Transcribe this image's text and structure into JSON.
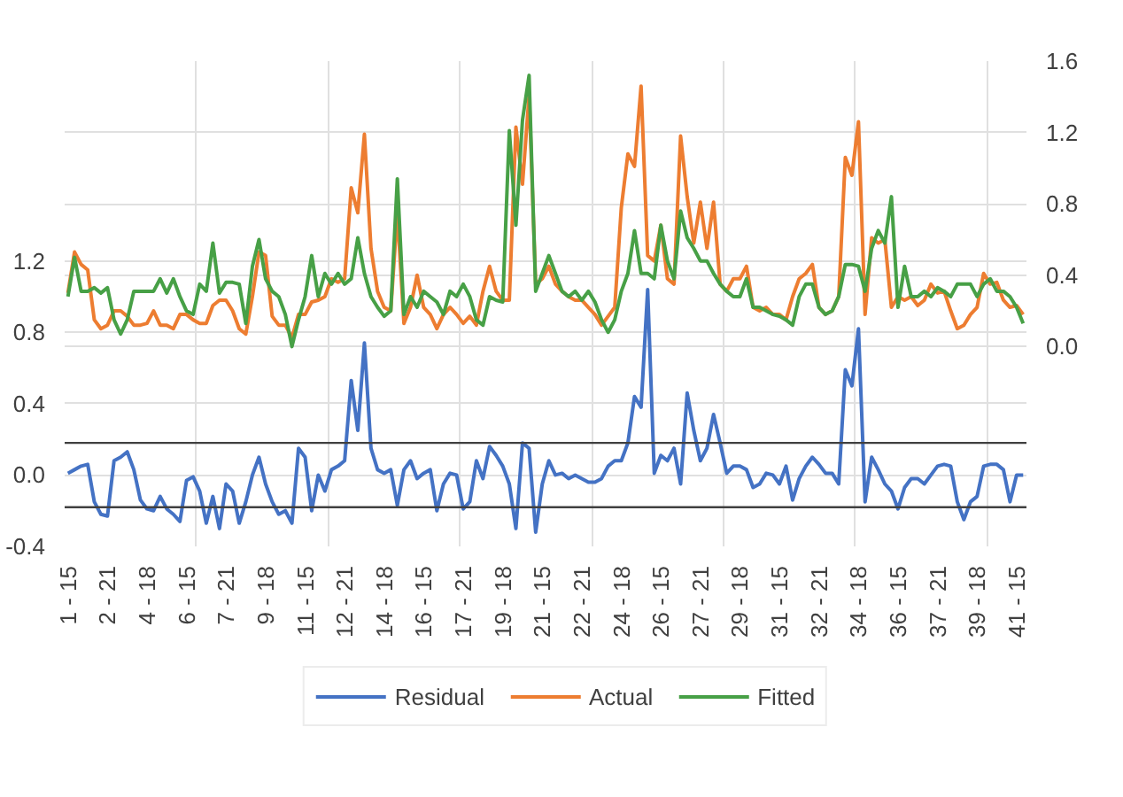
{
  "chart_data": {
    "type": "line",
    "categories": [
      "1 - 15",
      null,
      null,
      null,
      null,
      null,
      "2 - 21",
      null,
      null,
      null,
      null,
      null,
      "4 - 18",
      null,
      null,
      null,
      null,
      null,
      "6 - 15",
      null,
      null,
      null,
      null,
      null,
      "7 - 21",
      null,
      null,
      null,
      null,
      null,
      "9 - 18",
      null,
      null,
      null,
      null,
      null,
      "11 - 15",
      null,
      null,
      null,
      null,
      null,
      "12 - 21",
      null,
      null,
      null,
      null,
      null,
      "14 - 18",
      null,
      null,
      null,
      null,
      null,
      "16 - 15",
      null,
      null,
      null,
      null,
      null,
      "17 - 21",
      null,
      null,
      null,
      null,
      null,
      "19 - 18",
      null,
      null,
      null,
      null,
      null,
      "21 - 15",
      null,
      null,
      null,
      null,
      null,
      "22 - 21",
      null,
      null,
      null,
      null,
      null,
      "24 - 18",
      null,
      null,
      null,
      null,
      null,
      "26 - 15",
      null,
      null,
      null,
      null,
      null,
      "27 - 21",
      null,
      null,
      null,
      null,
      null,
      "29 - 18",
      null,
      null,
      null,
      null,
      null,
      "31 - 15",
      null,
      null,
      null,
      null,
      null,
      "32 - 21",
      null,
      null,
      null,
      null,
      null,
      "34 - 18",
      null,
      null,
      null,
      null,
      null,
      "36 - 15",
      null,
      null,
      null,
      null,
      null,
      "37 - 21",
      null,
      null,
      null,
      null,
      null,
      "39 - 18",
      null,
      null,
      null,
      null,
      null,
      "41 - 15",
      null
    ],
    "series": [
      {
        "name": "Residual",
        "color": "#4472c4",
        "values": [
          0.01,
          0.03,
          0.05,
          0.06,
          -0.15,
          -0.22,
          -0.23,
          0.08,
          0.1,
          0.13,
          0.03,
          -0.14,
          -0.19,
          -0.2,
          -0.12,
          -0.19,
          -0.22,
          -0.26,
          -0.03,
          -0.01,
          -0.09,
          -0.27,
          -0.12,
          -0.3,
          -0.05,
          -0.09,
          -0.27,
          -0.15,
          0.0,
          0.1,
          -0.05,
          -0.15,
          -0.22,
          -0.2,
          -0.27,
          0.15,
          0.1,
          -0.2,
          0.0,
          -0.09,
          0.03,
          0.05,
          0.08,
          0.53,
          0.25,
          0.74,
          0.15,
          0.03,
          0.01,
          0.03,
          -0.17,
          0.03,
          0.08,
          -0.02,
          0.01,
          0.03,
          -0.2,
          -0.05,
          0.01,
          0.0,
          -0.19,
          -0.15,
          0.08,
          -0.02,
          0.16,
          0.11,
          0.05,
          -0.05,
          -0.3,
          0.18,
          0.15,
          -0.32,
          -0.05,
          0.08,
          0.0,
          0.01,
          -0.02,
          0.0,
          -0.02,
          -0.04,
          -0.04,
          -0.02,
          0.05,
          0.08,
          0.08,
          0.18,
          0.44,
          0.38,
          1.04,
          0.01,
          0.11,
          0.08,
          0.15,
          -0.05,
          0.46,
          0.25,
          0.08,
          0.15,
          0.34,
          0.18,
          0.01,
          0.05,
          0.05,
          0.03,
          -0.07,
          -0.05,
          0.01,
          0.0,
          -0.05,
          0.05,
          -0.14,
          -0.02,
          0.05,
          0.1,
          0.06,
          0.01,
          0.01,
          -0.05,
          0.59,
          0.5,
          0.82,
          -0.15,
          0.1,
          0.03,
          -0.05,
          -0.09,
          -0.19,
          -0.07,
          -0.02,
          -0.02,
          -0.05,
          0.0,
          0.05,
          0.06,
          0.05,
          -0.15,
          -0.25,
          -0.15,
          -0.12,
          0.05,
          0.06,
          0.06,
          0.03,
          -0.15,
          0.0,
          0.0
        ]
      },
      {
        "name": "Actual",
        "color": "#ed7d31",
        "axis": "y2",
        "values": [
          0.3,
          0.53,
          0.46,
          0.43,
          0.15,
          0.1,
          0.12,
          0.2,
          0.2,
          0.17,
          0.12,
          0.12,
          0.13,
          0.2,
          0.12,
          0.12,
          0.1,
          0.18,
          0.18,
          0.15,
          0.13,
          0.13,
          0.23,
          0.26,
          0.26,
          0.2,
          0.1,
          0.07,
          0.28,
          0.53,
          0.51,
          0.17,
          0.12,
          0.12,
          0.05,
          0.18,
          0.18,
          0.25,
          0.26,
          0.28,
          0.38,
          0.36,
          0.38,
          0.89,
          0.75,
          1.19,
          0.55,
          0.31,
          0.22,
          0.2,
          0.75,
          0.13,
          0.22,
          0.4,
          0.22,
          0.18,
          0.1,
          0.18,
          0.22,
          0.18,
          0.13,
          0.17,
          0.12,
          0.31,
          0.45,
          0.31,
          0.26,
          0.26,
          1.23,
          0.91,
          1.41,
          0.35,
          0.38,
          0.45,
          0.35,
          0.31,
          0.28,
          0.26,
          0.26,
          0.22,
          0.18,
          0.12,
          0.17,
          0.22,
          0.78,
          1.08,
          1.01,
          1.46,
          0.51,
          0.48,
          0.68,
          0.38,
          0.35,
          1.18,
          0.84,
          0.58,
          0.81,
          0.55,
          0.81,
          0.35,
          0.31,
          0.38,
          0.38,
          0.45,
          0.22,
          0.2,
          0.22,
          0.18,
          0.18,
          0.15,
          0.28,
          0.38,
          0.41,
          0.46,
          0.22,
          0.18,
          0.2,
          0.28,
          1.06,
          0.96,
          1.26,
          0.18,
          0.61,
          0.58,
          0.6,
          0.22,
          0.28,
          0.26,
          0.28,
          0.23,
          0.26,
          0.35,
          0.3,
          0.31,
          0.2,
          0.1,
          0.12,
          0.18,
          0.22,
          0.41,
          0.35,
          0.36,
          0.26,
          0.22,
          0.23,
          0.18
        ]
      },
      {
        "name": "Fitted",
        "color": "#47a046",
        "axis": "y2",
        "values": [
          0.28,
          0.5,
          0.31,
          0.31,
          0.33,
          0.3,
          0.33,
          0.15,
          0.07,
          0.15,
          0.31,
          0.31,
          0.31,
          0.31,
          0.38,
          0.3,
          0.38,
          0.28,
          0.2,
          0.18,
          0.35,
          0.31,
          0.58,
          0.3,
          0.36,
          0.36,
          0.35,
          0.13,
          0.45,
          0.6,
          0.38,
          0.31,
          0.28,
          0.18,
          0.0,
          0.15,
          0.28,
          0.51,
          0.28,
          0.41,
          0.35,
          0.41,
          0.35,
          0.38,
          0.61,
          0.41,
          0.28,
          0.22,
          0.17,
          0.2,
          0.94,
          0.18,
          0.28,
          0.22,
          0.31,
          0.28,
          0.25,
          0.18,
          0.31,
          0.28,
          0.35,
          0.28,
          0.15,
          0.12,
          0.28,
          0.26,
          0.25,
          1.21,
          0.68,
          1.27,
          1.52,
          0.31,
          0.41,
          0.51,
          0.41,
          0.31,
          0.28,
          0.31,
          0.26,
          0.31,
          0.25,
          0.15,
          0.08,
          0.15,
          0.31,
          0.41,
          0.65,
          0.41,
          0.41,
          0.38,
          0.68,
          0.48,
          0.38,
          0.76,
          0.61,
          0.55,
          0.48,
          0.48,
          0.41,
          0.35,
          0.31,
          0.28,
          0.28,
          0.38,
          0.22,
          0.22,
          0.2,
          0.18,
          0.17,
          0.15,
          0.12,
          0.28,
          0.35,
          0.35,
          0.22,
          0.18,
          0.2,
          0.28,
          0.46,
          0.46,
          0.45,
          0.31,
          0.55,
          0.65,
          0.58,
          0.84,
          0.22,
          0.45,
          0.28,
          0.28,
          0.31,
          0.28,
          0.33,
          0.31,
          0.28,
          0.35,
          0.35,
          0.35,
          0.28,
          0.35,
          0.38,
          0.31,
          0.31,
          0.28,
          0.22,
          0.13
        ]
      }
    ],
    "ylim": [
      -0.4,
      2.32
    ],
    "yticks": [
      -0.4,
      {
        "value": 0,
        "label": "0.0"
      },
      0.4,
      0.8,
      1.2
    ],
    "y2lim": [
      -1.12,
      1.6
    ],
    "y2ticks": [
      {
        "value": 0,
        "label": "0.0"
      },
      0.4,
      0.8,
      1.2,
      1.6
    ],
    "ref_lines": [
      {
        "axis": "y",
        "value": 0.18,
        "label": null,
        "color": "#404040"
      },
      {
        "axis": "y",
        "value": -0.18,
        "label": null,
        "color": "#404040"
      }
    ],
    "grid": true,
    "legend": "bottom",
    "marker": "none",
    "line_style": "solid"
  }
}
